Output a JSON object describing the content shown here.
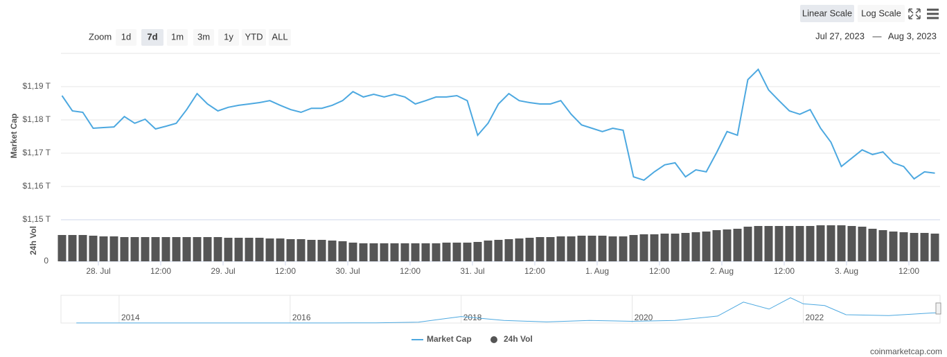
{
  "chart_data": {
    "type": "line",
    "toolbar": {
      "scale_buttons": [
        "Linear Scale",
        "Log Scale"
      ],
      "active_scale": 0,
      "zoom_label": "Zoom",
      "zoom_buttons": [
        "1d",
        "7d",
        "1m",
        "3m",
        "1y",
        "YTD",
        "ALL"
      ],
      "active_zoom": 1,
      "date_from": "Jul 27, 2023",
      "date_sep": "—",
      "date_to": "Aug 3, 2023"
    },
    "y_axis_label": "Market Cap",
    "y2_axis_label": "24h Vol",
    "xlim": [
      -7.2,
      162
    ],
    "xticks": [
      {
        "value": 0,
        "label": "28. Jul"
      },
      {
        "value": 12,
        "label": "12:00"
      },
      {
        "value": 24,
        "label": "29. Jul"
      },
      {
        "value": 36,
        "label": "12:00"
      },
      {
        "value": 48,
        "label": "30. Jul"
      },
      {
        "value": 60,
        "label": "12:00"
      },
      {
        "value": 72,
        "label": "31. Jul"
      },
      {
        "value": 84,
        "label": "12:00"
      },
      {
        "value": 96,
        "label": "1. Aug"
      },
      {
        "value": 108,
        "label": "12:00"
      },
      {
        "value": 120,
        "label": "2. Aug"
      },
      {
        "value": 132,
        "label": "12:00"
      },
      {
        "value": 144,
        "label": "3. Aug"
      },
      {
        "value": 156,
        "label": "12:00"
      }
    ],
    "ylim": [
      1.15,
      1.2
    ],
    "yticks": [
      {
        "value": 1.15,
        "label": "$1,15 T"
      },
      {
        "value": 1.16,
        "label": "$1,16 T"
      },
      {
        "value": 1.17,
        "label": "$1,17 T"
      },
      {
        "value": 1.18,
        "label": "$1,18 T"
      },
      {
        "value": 1.19,
        "label": "$1,19 T"
      }
    ],
    "y2lim": [
      0,
      60
    ],
    "y2ticks": [
      0
    ],
    "grid": true,
    "x": [
      -7,
      -5,
      -3,
      -1,
      1,
      3,
      5,
      7,
      9,
      11,
      13,
      15,
      17,
      19,
      21,
      23,
      25,
      27,
      29,
      31,
      33,
      35,
      37,
      39,
      41,
      43,
      45,
      47,
      49,
      51,
      53,
      55,
      57,
      59,
      61,
      63,
      65,
      67,
      69,
      71,
      73,
      75,
      77,
      79,
      81,
      83,
      85,
      87,
      89,
      91,
      93,
      95,
      97,
      99,
      101,
      103,
      105,
      107,
      109,
      111,
      113,
      115,
      117,
      119,
      121,
      123,
      125,
      127,
      129,
      131,
      133,
      135,
      137,
      139,
      141,
      143,
      145,
      147,
      149,
      151,
      153,
      155,
      157,
      159,
      161
    ],
    "series": [
      {
        "name": "Market Cap",
        "color": "#4ca8e0",
        "values": [
          1.1873,
          1.1827,
          1.1823,
          1.1775,
          1.1777,
          1.1779,
          1.181,
          1.179,
          1.1802,
          1.1773,
          1.1781,
          1.179,
          1.1831,
          1.1879,
          1.1848,
          1.1827,
          1.1838,
          1.1844,
          1.1848,
          1.1852,
          1.1858,
          1.1844,
          1.1831,
          1.1823,
          1.1835,
          1.1835,
          1.1844,
          1.1858,
          1.1885,
          1.1869,
          1.1877,
          1.1869,
          1.1877,
          1.1869,
          1.1848,
          1.1858,
          1.1869,
          1.1869,
          1.1873,
          1.1858,
          1.1754,
          1.179,
          1.1848,
          1.1879,
          1.1858,
          1.1852,
          1.1848,
          1.1848,
          1.1858,
          1.1817,
          1.1785,
          1.1775,
          1.1765,
          1.1775,
          1.1769,
          1.1629,
          1.1619,
          1.1644,
          1.1665,
          1.1671,
          1.1629,
          1.165,
          1.1644,
          1.1702,
          1.1765,
          1.1754,
          1.1921,
          1.1952,
          1.189,
          1.1858,
          1.1827,
          1.1817,
          1.1831,
          1.1775,
          1.1733,
          1.166,
          1.1685,
          1.171,
          1.1696,
          1.1704,
          1.1671,
          1.166,
          1.1623,
          1.1644,
          1.164
        ]
      },
      {
        "name": "24h Vol",
        "color": "#555555",
        "axis": "y2",
        "values": [
          38,
          38,
          38,
          37,
          36,
          36,
          35,
          35,
          35,
          35,
          35,
          35,
          35,
          35,
          35,
          35,
          34,
          34,
          34,
          34,
          33,
          33,
          32,
          32,
          31,
          31,
          30,
          29,
          27,
          26,
          26,
          26,
          26,
          26,
          26,
          26,
          26,
          27,
          27,
          27,
          28,
          30,
          31,
          32,
          33,
          34,
          35,
          35,
          36,
          36,
          37,
          37,
          37,
          36,
          36,
          38,
          39,
          39,
          40,
          40,
          41,
          42,
          43,
          45,
          46,
          47,
          50,
          51,
          51,
          51,
          51,
          51,
          51,
          52,
          52,
          52,
          51,
          50,
          47,
          45,
          43,
          42,
          41,
          41,
          40
        ]
      }
    ],
    "navigator": {
      "xlim": [
        2013.32,
        2023.6
      ],
      "xticks": [
        2014,
        2016,
        2018,
        2020,
        2022
      ],
      "ylim": [
        0,
        3.1
      ],
      "x": [
        2013.5,
        2014,
        2014.5,
        2015,
        2015.5,
        2016,
        2016.5,
        2017,
        2017.5,
        2018,
        2018.5,
        2019,
        2019.5,
        2020,
        2020.5,
        2021,
        2021.3,
        2021.6,
        2021.85,
        2022,
        2022.25,
        2022.5,
        2023,
        2023.5,
        2023.58
      ],
      "values": [
        0.005,
        0.01,
        0.008,
        0.005,
        0.005,
        0.007,
        0.01,
        0.02,
        0.1,
        0.75,
        0.3,
        0.13,
        0.3,
        0.2,
        0.3,
        0.8,
        2.4,
        1.6,
        2.9,
        2.2,
        2.0,
        0.95,
        0.85,
        1.15,
        1.17
      ]
    },
    "credit": "coinmarketcap.com"
  }
}
